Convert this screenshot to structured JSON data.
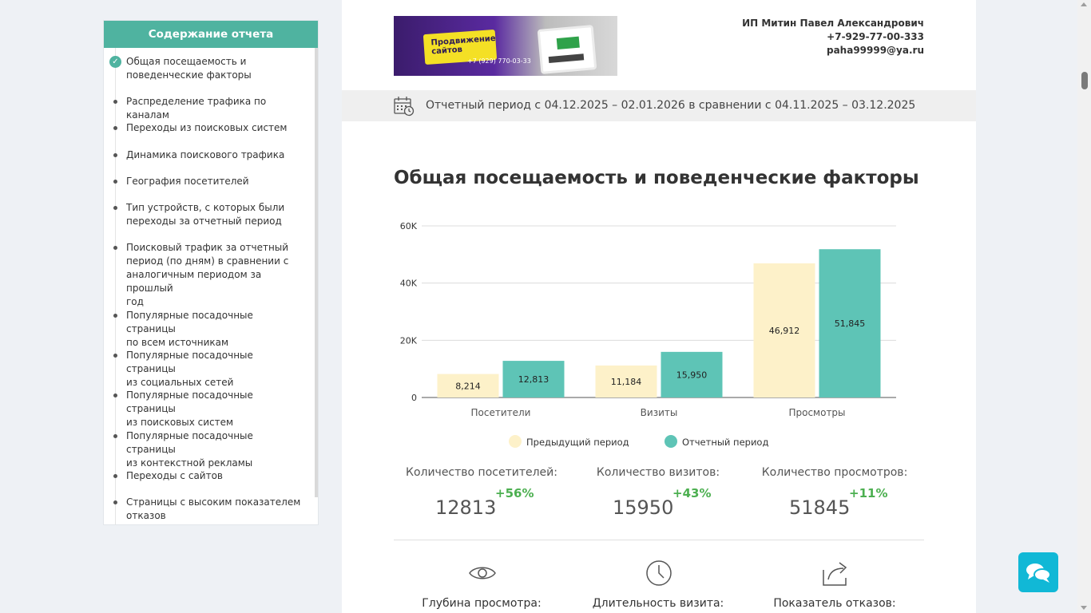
{
  "sidebar": {
    "title": "Содержание отчета",
    "items": [
      {
        "label": "Общая посещаемость и поведенческие факторы",
        "lines": [
          "Общая посещаемость и",
          "поведенческие факторы"
        ],
        "active": true
      },
      {
        "label": "Распределение трафика по каналам",
        "lines": [
          "Распределение трафика по каналам"
        ]
      },
      {
        "label": "Переходы из поисковых систем",
        "lines": [
          "Переходы из поисковых систем"
        ]
      },
      {
        "label": "Динамика поискового трафика",
        "lines": [
          "Динамика поискового трафика"
        ]
      },
      {
        "label": "География посетителей",
        "lines": [
          "География посетителей"
        ]
      },
      {
        "label": "Тип устройств, с которых были переходы за отчетный период",
        "lines": [
          "Тип устройств, с которых были",
          "переходы за отчетный период"
        ]
      },
      {
        "label": "Поисковый трафик за отчетный период (по дням) в сравнении с аналогичным периодом за прошлый год",
        "lines": [
          "Поисковый трафик за отчетный",
          "период (по дням) в сравнении с",
          "аналогичным периодом за прошлый",
          "год"
        ]
      },
      {
        "label": "Популярные посадочные страницы по всем источникам",
        "lines": [
          "Популярные посадочные страницы",
          "по всем источникам"
        ]
      },
      {
        "label": "Популярные посадочные страницы из социальных сетей",
        "lines": [
          "Популярные посадочные страницы",
          "из социальных сетей"
        ]
      },
      {
        "label": "Популярные посадочные страницы из поисковых систем",
        "lines": [
          "Популярные посадочные страницы",
          "из поисковых систем"
        ]
      },
      {
        "label": "Популярные посадочные страницы из контекстной рекламы",
        "lines": [
          "Популярные посадочные страницы",
          "из контекстной рекламы"
        ]
      },
      {
        "label": "Переходы с сайтов",
        "lines": [
          "Переходы с сайтов"
        ]
      },
      {
        "label": "Страницы с высоким показателем отказов",
        "lines": [
          "Страницы с высоким показателем",
          "отказов"
        ]
      }
    ]
  },
  "banner": {
    "badge_line1": "Продвижение",
    "badge_line2": "сайтов",
    "phone": "+7 (929) 770-03-33"
  },
  "owner": {
    "name": "ИП Митин Павел Александрович",
    "phone": "+7-929-77-00-333",
    "email": "paha99999@ya.ru"
  },
  "period": {
    "text": "Отчетный период с 04.12.2025 – 02.01.2026 в сравнении с 04.11.2025 – 03.12.2025",
    "icon": "calendar-icon"
  },
  "section_title": "Общая посещаемость и поведенческие факторы",
  "chart_data": {
    "type": "bar",
    "categories": [
      "Посетители",
      "Визиты",
      "Просмотры"
    ],
    "series": [
      {
        "name": "Предыдущий период",
        "values": [
          8214,
          11184,
          46912
        ],
        "labels": [
          "8,214",
          "11,184",
          "46,912"
        ],
        "color": "#fdf1c9"
      },
      {
        "name": "Отчетный период",
        "values": [
          12813,
          15950,
          51845
        ],
        "labels": [
          "12,813",
          "15,950",
          "51,845"
        ],
        "color": "#5ec4b6"
      }
    ],
    "ylim": [
      0,
      60000
    ],
    "yticks": [
      0,
      20000,
      40000,
      60000
    ],
    "ytick_labels": [
      "0",
      "20K",
      "40K",
      "60K"
    ],
    "grid": true,
    "legend": "bottom"
  },
  "metrics": [
    {
      "label": "Количество посетителей:",
      "value": "12813",
      "change": "+56%"
    },
    {
      "label": "Количество визитов:",
      "value": "15950",
      "change": "+43%"
    },
    {
      "label": "Количество просмотров:",
      "value": "51845",
      "change": "+11%"
    }
  ],
  "behavior": [
    {
      "label": "Глубина просмотра:",
      "icon": "eye-icon"
    },
    {
      "label": "Длительность визита:",
      "icon": "clock-icon"
    },
    {
      "label": "Показатель отказов:",
      "icon": "share-icon"
    }
  ],
  "colors": {
    "accent": "#4fb3a0",
    "positive": "#4caf50",
    "chat": "#11b8d6"
  }
}
